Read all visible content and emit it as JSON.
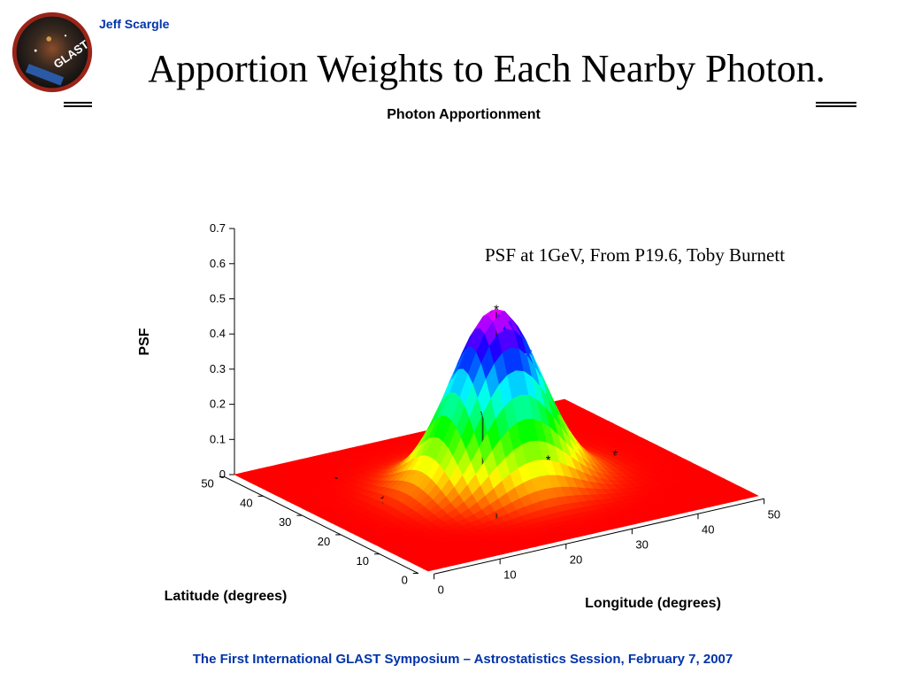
{
  "header": {
    "author": "Jeff Scargle",
    "title": "Apportion Weights to Each Nearby Photon.",
    "logo_text": "GLAST"
  },
  "footer": {
    "text": "The First International GLAST Symposium – Astrostatistics Session, February 7, 2007"
  },
  "annotation": "PSF at 1GeV, From P19.6, Toby Burnett",
  "chart_data": {
    "type": "surface3d",
    "title": "Photon Apportionment",
    "xlabel": "Longitude (degrees)",
    "ylabel": "Latitude (degrees)",
    "zlabel": "PSF",
    "xlim": [
      0,
      50
    ],
    "ylim": [
      0,
      50
    ],
    "zlim": [
      0,
      0.7
    ],
    "xticks": [
      "0",
      "10",
      "20",
      "30",
      "40",
      "50"
    ],
    "yticks": [
      "0",
      "10",
      "20",
      "30",
      "40",
      "50"
    ],
    "zticks": [
      "0",
      "0.1",
      "0.2",
      "0.3",
      "0.4",
      "0.5",
      "0.6",
      "0.7"
    ],
    "surface": {
      "center": [
        25,
        25
      ],
      "peak": 0.5,
      "sigma": 6,
      "colormap": "hsv"
    },
    "photons": [
      {
        "x": 25,
        "y": 25,
        "psf": 0.5
      },
      {
        "x": 30,
        "y": 25,
        "psf": 0.29
      },
      {
        "x": 34,
        "y": 27,
        "psf": 0.05
      },
      {
        "x": 36,
        "y": 25,
        "psf": 0.03
      },
      {
        "x": 43,
        "y": 25,
        "psf": 0.01
      },
      {
        "x": 24,
        "y": 33,
        "psf": 0.03
      },
      {
        "x": 20,
        "y": 20,
        "psf": 0.01
      },
      {
        "x": 27,
        "y": 15,
        "psf": 0.01
      },
      {
        "x": 18,
        "y": 13,
        "psf": 0.005
      },
      {
        "x": 9,
        "y": 39,
        "psf": 0.005
      },
      {
        "x": 9,
        "y": 27,
        "psf": 0.005
      }
    ]
  }
}
